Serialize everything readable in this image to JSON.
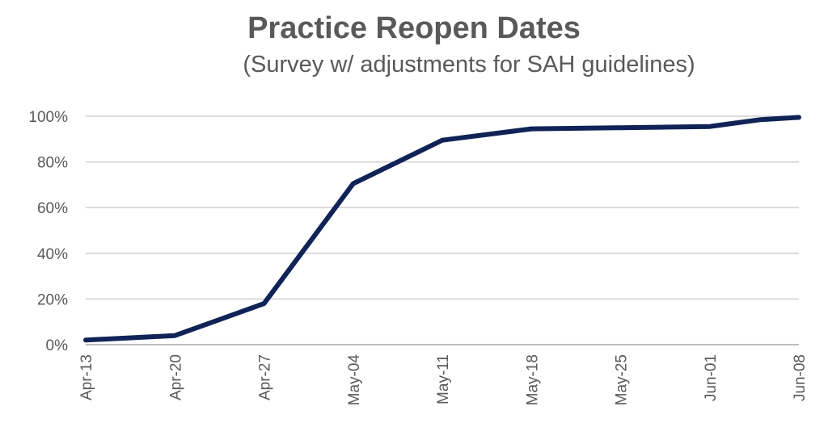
{
  "chart_data": {
    "type": "line",
    "title": "Practice Reopen Dates",
    "subtitle": "(Survey w/ adjustments for SAH guidelines)",
    "xlabel": "",
    "ylabel": "",
    "categories": [
      "Apr-13",
      "Apr-20",
      "Apr-27",
      "May-04",
      "May-11",
      "May-18",
      "May-25",
      "Jun-01",
      "Jun-08"
    ],
    "x": [
      "2020-04-13",
      "2020-04-20",
      "2020-04-27",
      "2020-05-04",
      "2020-05-11",
      "2020-05-18",
      "2020-05-25",
      "2020-06-01",
      "2020-06-05",
      "2020-06-08"
    ],
    "series": [
      {
        "values": [
          2,
          4,
          18,
          70.5,
          89.5,
          94.5,
          95,
          95.5,
          98.5,
          99.5
        ]
      }
    ],
    "ylim": [
      0,
      100
    ],
    "yticks": [
      "0%",
      "20%",
      "40%",
      "60%",
      "80%",
      "100%"
    ],
    "grid": true,
    "legend": "none",
    "colors": {
      "line": "#0f2357",
      "grid": "#cfcfcf",
      "text": "#58595b"
    }
  }
}
